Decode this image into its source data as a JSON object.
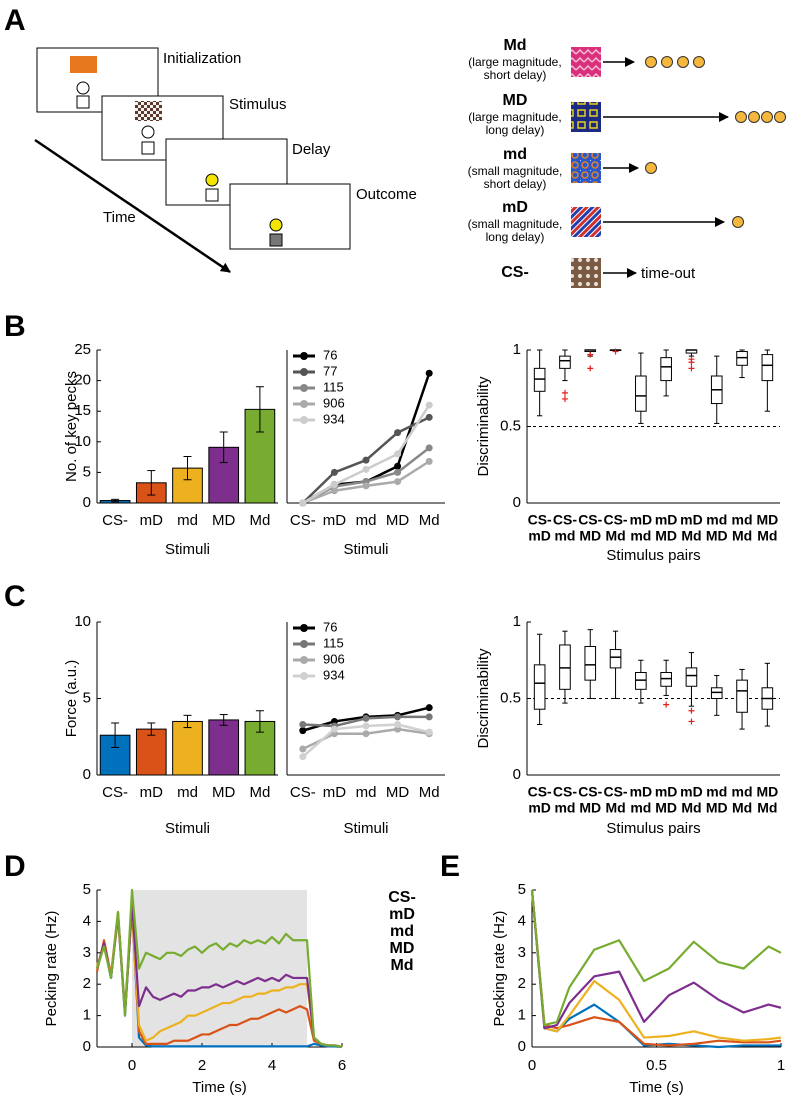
{
  "panel_labels": [
    "A",
    "B",
    "C",
    "D",
    "E"
  ],
  "diagram": {
    "events": [
      "Initialization",
      "Stimulus",
      "Delay",
      "Outcome"
    ],
    "axis": "Time",
    "stimuli": [
      {
        "name": "Md",
        "description": [
          "(large magnitude,",
          "short delay)"
        ]
      },
      {
        "name": "MD",
        "description": [
          "(large magnitude,",
          "long delay)"
        ]
      },
      {
        "name": "md",
        "description": [
          "(small magnitude,",
          "short delay)"
        ]
      },
      {
        "name": "mD",
        "description": [
          "(small magnitude,",
          "long delay)"
        ]
      },
      {
        "name": "CS-",
        "outcome": "time-out"
      }
    ]
  },
  "chart_data": [
    {
      "type": "bar",
      "categories": [
        "CS-",
        "mD",
        "md",
        "MD",
        "Md"
      ],
      "values": [
        0.4,
        3.3,
        5.7,
        9.1,
        15.3
      ],
      "errors": [
        0.2,
        2.0,
        1.9,
        2.5,
        3.7
      ],
      "colors": [
        "#0072bd",
        "#d95319",
        "#edb120",
        "#7e2f8e",
        "#77ac30"
      ],
      "ylim": [
        0,
        25
      ],
      "yticks": [
        0,
        5,
        10,
        15,
        20,
        25
      ],
      "ylabel": "No. of key pecks",
      "xlabel": "Stimuli"
    },
    {
      "type": "line",
      "categories": [
        "CS-",
        "mD",
        "md",
        "MD",
        "Md"
      ],
      "ylim": [
        0,
        25
      ],
      "legend": "upper left",
      "markers": true,
      "series": [
        {
          "name": "76",
          "color": "#000000",
          "values": [
            0,
            3.0,
            3.5,
            6.0,
            21.2
          ]
        },
        {
          "name": "77",
          "color": "#555555",
          "values": [
            0,
            5.0,
            7.0,
            11.5,
            14.0
          ]
        },
        {
          "name": "115",
          "color": "#888888",
          "values": [
            0,
            2.7,
            3.5,
            5.0,
            9.0
          ]
        },
        {
          "name": "906",
          "color": "#aaaaaa",
          "values": [
            0,
            2.0,
            2.8,
            3.5,
            6.8
          ]
        },
        {
          "name": "934",
          "color": "#cccccc",
          "values": [
            0,
            3.0,
            5.5,
            8.0,
            16.0
          ]
        }
      ],
      "xlabel": "Stimuli"
    },
    {
      "type": "box",
      "categories": [
        [
          "CS-",
          "mD"
        ],
        [
          "CS-",
          "md"
        ],
        [
          "CS-",
          "MD"
        ],
        [
          "CS-",
          "Md"
        ],
        [
          "mD",
          "md"
        ],
        [
          "mD",
          "MD"
        ],
        [
          "mD",
          "Md"
        ],
        [
          "md",
          "MD"
        ],
        [
          "md",
          "Md"
        ],
        [
          "MD",
          "Md"
        ]
      ],
      "category_colors": [
        [
          "#0072bd",
          "#d95319"
        ],
        [
          "#0072bd",
          "#edb120"
        ],
        [
          "#0072bd",
          "#7e2f8e"
        ],
        [
          "#0072bd",
          "#77ac30"
        ],
        [
          "#d95319",
          "#edb120"
        ],
        [
          "#d95319",
          "#7e2f8e"
        ],
        [
          "#d95319",
          "#77ac30"
        ],
        [
          "#edb120",
          "#7e2f8e"
        ],
        [
          "#edb120",
          "#77ac30"
        ],
        [
          "#7e2f8e",
          "#77ac30"
        ]
      ],
      "boxes": [
        {
          "min": 0.57,
          "q1": 0.73,
          "median": 0.81,
          "q3": 0.88,
          "max": 1.0,
          "outliers": []
        },
        {
          "min": 0.8,
          "q1": 0.88,
          "median": 0.93,
          "q3": 0.96,
          "max": 1.0,
          "outliers": [
            0.72,
            0.68
          ]
        },
        {
          "min": 0.96,
          "q1": 0.99,
          "median": 1.0,
          "q3": 1.0,
          "max": 1.0,
          "outliers": [
            0.97,
            0.88
          ]
        },
        {
          "min": 1.0,
          "q1": 1.0,
          "median": 1.0,
          "q3": 1.0,
          "max": 1.0,
          "outliers": [
            0.99
          ]
        },
        {
          "min": 0.52,
          "q1": 0.6,
          "median": 0.7,
          "q3": 0.83,
          "max": 0.98,
          "outliers": []
        },
        {
          "min": 0.7,
          "q1": 0.8,
          "median": 0.89,
          "q3": 0.95,
          "max": 1.0,
          "outliers": []
        },
        {
          "min": 0.96,
          "q1": 0.98,
          "median": 1.0,
          "q3": 1.0,
          "max": 1.0,
          "outliers": [
            0.94,
            0.92,
            0.88
          ]
        },
        {
          "min": 0.52,
          "q1": 0.65,
          "median": 0.74,
          "q3": 0.83,
          "max": 0.96,
          "outliers": []
        },
        {
          "min": 0.82,
          "q1": 0.9,
          "median": 0.95,
          "q3": 0.99,
          "max": 1.0,
          "outliers": []
        },
        {
          "min": 0.6,
          "q1": 0.8,
          "median": 0.9,
          "q3": 0.97,
          "max": 1.0,
          "outliers": []
        }
      ],
      "reference_line": 0.5,
      "ylim": [
        0,
        1
      ],
      "yticks": [
        0,
        0.5,
        1
      ],
      "ylabel": "Discriminability",
      "xlabel": "Stimulus pairs"
    },
    {
      "type": "bar",
      "categories": [
        "CS-",
        "mD",
        "md",
        "MD",
        "Md"
      ],
      "values": [
        2.6,
        3.0,
        3.5,
        3.6,
        3.5
      ],
      "errors": [
        0.8,
        0.4,
        0.4,
        0.35,
        0.7
      ],
      "colors": [
        "#0072bd",
        "#d95319",
        "#edb120",
        "#7e2f8e",
        "#77ac30"
      ],
      "ylim": [
        0,
        10
      ],
      "yticks": [
        0,
        5,
        10
      ],
      "ylabel": "Force (a.u.)",
      "xlabel": "Stimuli"
    },
    {
      "type": "line",
      "categories": [
        "CS-",
        "mD",
        "md",
        "MD",
        "Md"
      ],
      "ylim": [
        0,
        10
      ],
      "legend": "upper left",
      "markers": true,
      "series": [
        {
          "name": "76",
          "color": "#000000",
          "values": [
            2.9,
            3.5,
            3.8,
            3.9,
            4.4
          ]
        },
        {
          "name": "115",
          "color": "#777777",
          "values": [
            3.3,
            3.2,
            3.7,
            3.8,
            3.8
          ]
        },
        {
          "name": "906",
          "color": "#aaaaaa",
          "values": [
            1.7,
            2.7,
            2.7,
            3.0,
            2.7
          ]
        },
        {
          "name": "934",
          "color": "#d0d0d0",
          "values": [
            1.2,
            3.0,
            3.2,
            3.3,
            2.8
          ]
        }
      ],
      "xlabel": "Stimuli"
    },
    {
      "type": "box",
      "categories": [
        [
          "CS-",
          "mD"
        ],
        [
          "CS-",
          "md"
        ],
        [
          "CS-",
          "MD"
        ],
        [
          "CS-",
          "Md"
        ],
        [
          "mD",
          "md"
        ],
        [
          "mD",
          "MD"
        ],
        [
          "mD",
          "Md"
        ],
        [
          "md",
          "MD"
        ],
        [
          "md",
          "Md"
        ],
        [
          "MD",
          "Md"
        ]
      ],
      "category_colors": [
        [
          "#0072bd",
          "#d95319"
        ],
        [
          "#0072bd",
          "#edb120"
        ],
        [
          "#0072bd",
          "#7e2f8e"
        ],
        [
          "#0072bd",
          "#77ac30"
        ],
        [
          "#d95319",
          "#edb120"
        ],
        [
          "#d95319",
          "#7e2f8e"
        ],
        [
          "#d95319",
          "#77ac30"
        ],
        [
          "#edb120",
          "#7e2f8e"
        ],
        [
          "#edb120",
          "#77ac30"
        ],
        [
          "#7e2f8e",
          "#77ac30"
        ]
      ],
      "boxes": [
        {
          "min": 0.33,
          "q1": 0.43,
          "median": 0.6,
          "q3": 0.72,
          "max": 0.92,
          "outliers": []
        },
        {
          "min": 0.47,
          "q1": 0.56,
          "median": 0.7,
          "q3": 0.85,
          "max": 0.94,
          "outliers": []
        },
        {
          "min": 0.5,
          "q1": 0.62,
          "median": 0.72,
          "q3": 0.84,
          "max": 0.95,
          "outliers": []
        },
        {
          "min": 0.5,
          "q1": 0.7,
          "median": 0.77,
          "q3": 0.82,
          "max": 0.94,
          "outliers": []
        },
        {
          "min": 0.47,
          "q1": 0.56,
          "median": 0.62,
          "q3": 0.67,
          "max": 0.75,
          "outliers": []
        },
        {
          "min": 0.52,
          "q1": 0.58,
          "median": 0.63,
          "q3": 0.67,
          "max": 0.75,
          "outliers": [
            0.46
          ]
        },
        {
          "min": 0.45,
          "q1": 0.58,
          "median": 0.65,
          "q3": 0.7,
          "max": 0.8,
          "outliers": [
            0.42,
            0.35
          ]
        },
        {
          "min": 0.39,
          "q1": 0.5,
          "median": 0.54,
          "q3": 0.57,
          "max": 0.65,
          "outliers": []
        },
        {
          "min": 0.3,
          "q1": 0.41,
          "median": 0.55,
          "q3": 0.62,
          "max": 0.69,
          "outliers": []
        },
        {
          "min": 0.32,
          "q1": 0.43,
          "median": 0.5,
          "q3": 0.57,
          "max": 0.73,
          "outliers": []
        }
      ],
      "reference_line": 0.5,
      "ylim": [
        0,
        1
      ],
      "yticks": [
        0,
        0.5,
        1
      ],
      "ylabel": "Discriminability",
      "xlabel": "Stimulus pairs"
    },
    {
      "type": "line",
      "x": [
        -1,
        -0.8,
        -0.6,
        -0.4,
        -0.2,
        0,
        0.2,
        0.4,
        0.6,
        0.8,
        1,
        1.2,
        1.4,
        1.6,
        1.8,
        2,
        2.2,
        2.4,
        2.6,
        2.8,
        3,
        3.2,
        3.4,
        3.6,
        3.8,
        4,
        4.2,
        4.4,
        4.6,
        4.8,
        5,
        5.2,
        5.4,
        5.6,
        5.8,
        6
      ],
      "xlim": [
        -1,
        6
      ],
      "xticks": [
        0,
        2,
        4,
        6
      ],
      "ylim": [
        0,
        5
      ],
      "yticks": [
        0,
        1,
        2,
        3,
        4,
        5
      ],
      "shade": [
        0,
        5
      ],
      "legend": "right",
      "series": [
        {
          "name": "CS-",
          "color": "#0072bd",
          "values": [
            2.5,
            3.3,
            2.2,
            4.2,
            1.0,
            4.5,
            0.3,
            0.05,
            0.02,
            0.02,
            0.02,
            0.02,
            0.02,
            0.02,
            0.02,
            0.02,
            0.02,
            0.02,
            0.02,
            0.02,
            0.02,
            0.02,
            0.02,
            0.02,
            0.02,
            0.02,
            0.02,
            0.02,
            0.02,
            0.02,
            0.02,
            0.1,
            0.05,
            0.02,
            0.02,
            0
          ]
        },
        {
          "name": "mD",
          "color": "#d95319",
          "values": [
            2.4,
            3.4,
            2.3,
            4.3,
            1.1,
            4.4,
            0.5,
            0.1,
            0.1,
            0.1,
            0.1,
            0.2,
            0.2,
            0.2,
            0.3,
            0.4,
            0.4,
            0.5,
            0.6,
            0.7,
            0.7,
            0.8,
            0.9,
            0.9,
            1.0,
            1.1,
            1.2,
            1.1,
            1.2,
            1.3,
            1.2,
            0.2,
            0.1,
            0.05,
            0.05,
            0
          ]
        },
        {
          "name": "md",
          "color": "#edb120",
          "values": [
            2.6,
            3.2,
            2.3,
            4.1,
            1.2,
            4.5,
            0.7,
            0.2,
            0.3,
            0.5,
            0.6,
            0.7,
            0.8,
            1.0,
            1.0,
            1.1,
            1.2,
            1.3,
            1.4,
            1.4,
            1.5,
            1.6,
            1.6,
            1.7,
            1.7,
            1.8,
            1.8,
            1.9,
            1.9,
            2.0,
            2.0,
            0.3,
            0.1,
            0.05,
            0.05,
            0
          ]
        },
        {
          "name": "MD",
          "color": "#7e2f8e",
          "values": [
            2.5,
            3.3,
            2.2,
            4.2,
            1.1,
            4.6,
            1.3,
            1.9,
            1.6,
            1.5,
            1.6,
            1.7,
            1.6,
            1.8,
            1.8,
            1.9,
            1.9,
            2.0,
            1.9,
            2.0,
            2.1,
            2.0,
            2.1,
            2.2,
            2.1,
            2.2,
            2.1,
            2.3,
            2.2,
            2.2,
            2.2,
            0.3,
            0.1,
            0.05,
            0.05,
            0
          ]
        },
        {
          "name": "Md",
          "color": "#77ac30",
          "values": [
            2.5,
            3.2,
            2.2,
            4.3,
            1.0,
            5.0,
            2.5,
            3.0,
            2.9,
            2.8,
            3.0,
            3.0,
            2.9,
            3.1,
            3.2,
            3.0,
            3.2,
            3.3,
            3.1,
            3.3,
            3.2,
            3.4,
            3.3,
            3.4,
            3.3,
            3.5,
            3.3,
            3.6,
            3.4,
            3.4,
            3.4,
            0.3,
            0.1,
            0.05,
            0.05,
            0
          ]
        }
      ],
      "ylabel": "Pecking rate (Hz)",
      "xlabel": "Time (s)"
    },
    {
      "type": "line",
      "x": [
        0,
        0.05,
        0.1,
        0.15,
        0.25,
        0.35,
        0.45,
        0.55,
        0.65,
        0.75,
        0.85,
        0.95,
        1
      ],
      "xlim": [
        0,
        1
      ],
      "xticks": [
        0,
        0.5,
        1
      ],
      "ylim": [
        0,
        5
      ],
      "yticks": [
        0,
        1,
        2,
        3,
        4,
        5
      ],
      "series": [
        {
          "name": "CS-",
          "color": "#0072bd",
          "values": [
            5.0,
            0.6,
            0.5,
            0.9,
            1.35,
            0.8,
            0.05,
            0.1,
            0.05,
            0.0,
            0.05,
            0.05,
            0.05
          ]
        },
        {
          "name": "mD",
          "color": "#d95319",
          "values": [
            5.0,
            0.7,
            0.6,
            0.7,
            0.95,
            0.8,
            0.1,
            0.05,
            0.1,
            0.2,
            0.15,
            0.15,
            0.2
          ]
        },
        {
          "name": "md",
          "color": "#edb120",
          "values": [
            5.0,
            0.6,
            0.5,
            1.0,
            2.1,
            1.5,
            0.3,
            0.35,
            0.5,
            0.3,
            0.2,
            0.25,
            0.3
          ]
        },
        {
          "name": "MD",
          "color": "#7e2f8e",
          "values": [
            5.0,
            0.6,
            0.7,
            1.4,
            2.25,
            2.4,
            0.8,
            1.65,
            2.05,
            1.5,
            1.1,
            1.35,
            1.25
          ]
        },
        {
          "name": "Md",
          "color": "#77ac30",
          "values": [
            5.0,
            0.7,
            0.8,
            1.9,
            3.1,
            3.4,
            2.1,
            2.5,
            3.35,
            2.7,
            2.5,
            3.2,
            3.0
          ]
        }
      ],
      "ylabel": "Pecking rate (Hz)",
      "xlabel": "Time (s)"
    }
  ]
}
